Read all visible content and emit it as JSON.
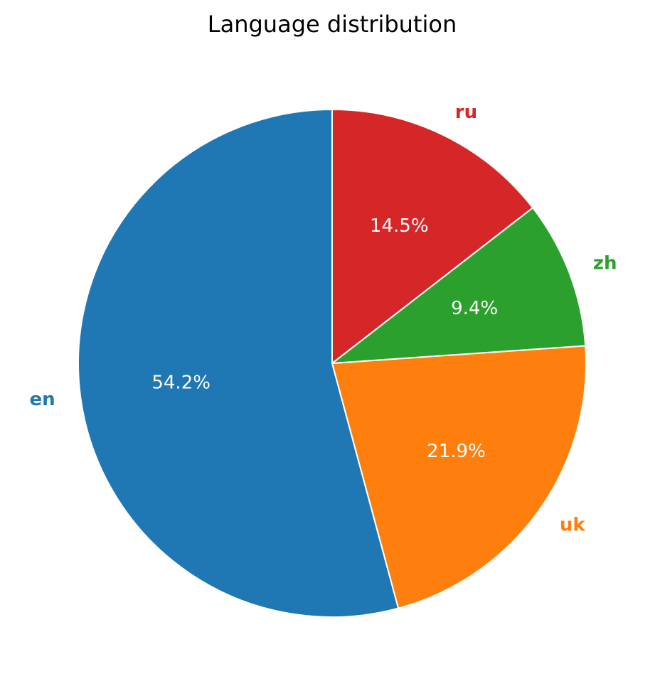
{
  "chart_data": {
    "type": "pie",
    "title": "Language distribution",
    "categories": [
      "en",
      "uk",
      "zh",
      "ru"
    ],
    "values": [
      54.2,
      21.9,
      9.4,
      14.5
    ],
    "value_labels": [
      "54.2%",
      "21.9%",
      "9.4%",
      "14.5%"
    ],
    "colors": [
      "#1f77b4",
      "#ff7f0e",
      "#2ca02c",
      "#d62728"
    ]
  }
}
